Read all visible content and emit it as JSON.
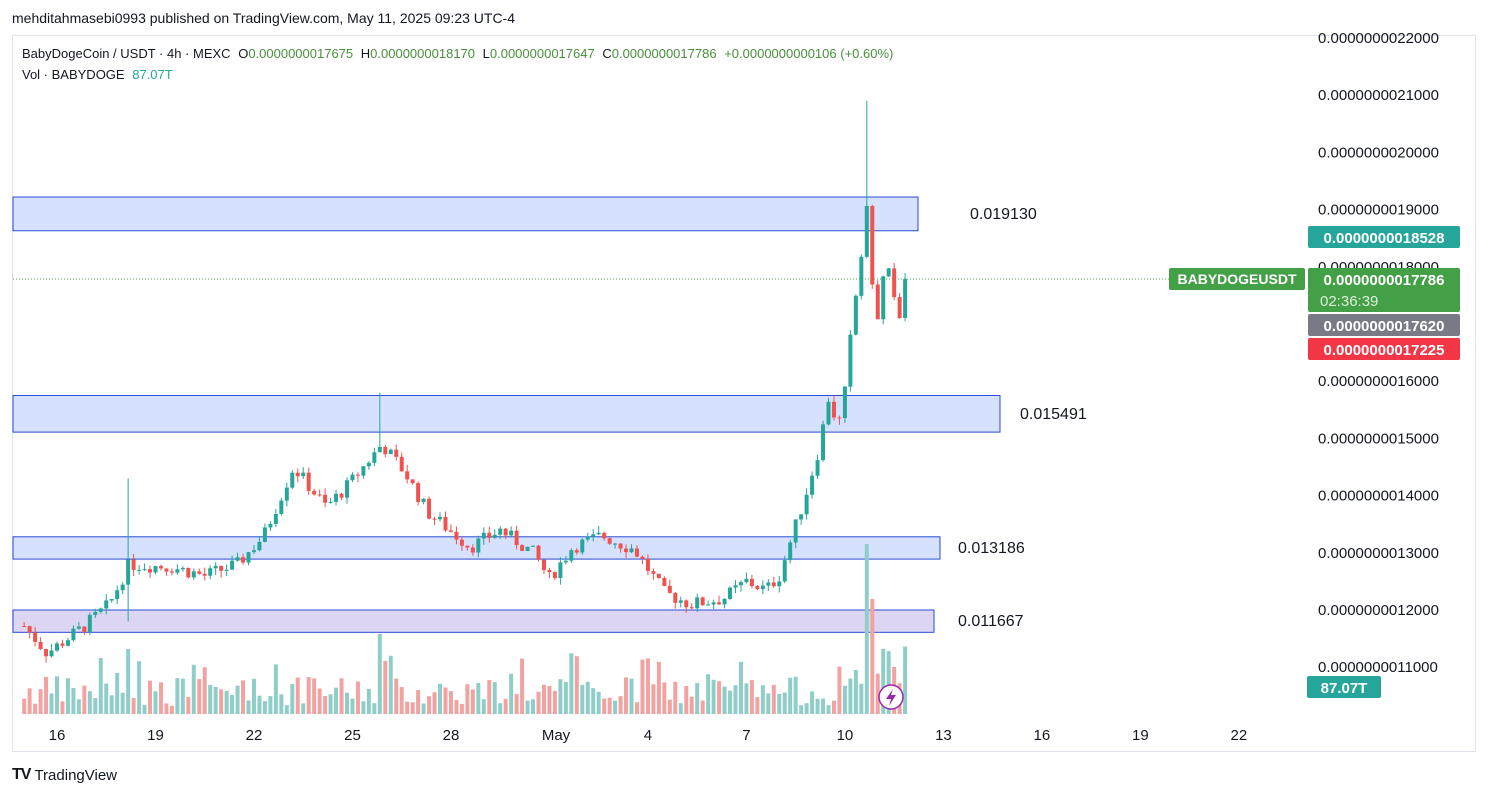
{
  "publisher_line": "mehditahmasebi0993 published on TradingView.com, May 11, 2025 09:23 UTC-4",
  "legend": {
    "symbol": "BabyDogeCoin / USDT · 4h · MEXC",
    "o_label": "O",
    "o_value": "0.0000000017675",
    "h_label": "H",
    "h_value": "0.0000000018170",
    "l_label": "L",
    "l_value": "0.0000000017647",
    "c_label": "C",
    "c_value": "0.0000000017786",
    "change": "+0.0000000000106 (+0.60%)",
    "vol_label": "Vol · BABYDOGE",
    "vol_value": "87.07T"
  },
  "footer": {
    "brand": "TradingView",
    "logo_text": "TV"
  },
  "colors": {
    "up": "#26a69a",
    "down": "#ef5350",
    "volume_up": "#8fcec8",
    "volume_down": "#f1a3a1",
    "zone_fill": "#d6e1fd",
    "zone_stroke": "#2a4bd7",
    "zone_purple_fill": "#ddd6f3",
    "last_price": "#43a047",
    "teal_label": "#26a69a",
    "red_label": "#f23645",
    "gray_label": "#787b86"
  },
  "chart_data": {
    "type": "candlestick",
    "y_ticks": [
      "0.0000000022000",
      "0.0000000021000",
      "0.0000000020000",
      "0.0000000019000",
      "0.0000000018000",
      "0.0000000016000",
      "0.0000000015000",
      "0.0000000014000",
      "0.0000000013000",
      "0.0000000012000",
      "0.0000000011000"
    ],
    "x_ticks": [
      "16",
      "19",
      "22",
      "25",
      "28",
      "May",
      "4",
      "7",
      "10",
      "13",
      "16",
      "19",
      "22"
    ],
    "ylim": [
      1.1e-09,
      2.2e-09
    ],
    "zones": [
      {
        "label": "0.019130",
        "low": 1.863e-09,
        "high": 1.922e-09
      },
      {
        "label": "0.015491",
        "low": 1.511e-09,
        "high": 1.575e-09
      },
      {
        "label": "0.013186",
        "low": 1.289e-09,
        "high": 1.328e-09
      },
      {
        "label": "0.011667",
        "low": 1.161e-09,
        "high": 1.2e-09,
        "purple": true
      }
    ],
    "price_labels": [
      {
        "text": "0.0000000018528",
        "value": 1.8528e-09,
        "kind": "teal"
      },
      {
        "text": "0.0000000017786",
        "value": 1.7786e-09,
        "kind": "last",
        "symbol": "BABYDOGEUSDT",
        "countdown": "02:36:39"
      },
      {
        "text": "0.0000000017620",
        "value": 1.762e-09,
        "kind": "gray"
      },
      {
        "text": "0.0000000017225",
        "value": 1.7225e-09,
        "kind": "red"
      }
    ],
    "volume_label": "87.07T",
    "key_closes": [
      {
        "day": 15.0,
        "c": 1.172e-09
      },
      {
        "day": 15.7,
        "c": 1.125e-09
      },
      {
        "day": 16.8,
        "c": 1.17e-09
      },
      {
        "day": 17.6,
        "c": 1.21e-09
      },
      {
        "day": 18.2,
        "c": 1.28e-09
      },
      {
        "day": 19.5,
        "c": 1.275e-09
      },
      {
        "day": 20.5,
        "c": 1.26e-09
      },
      {
        "day": 21.5,
        "c": 1.28e-09
      },
      {
        "day": 22.3,
        "c": 1.33e-09
      },
      {
        "day": 23.2,
        "c": 1.45e-09
      },
      {
        "day": 24.2,
        "c": 1.38e-09
      },
      {
        "day": 24.9,
        "c": 1.42e-09
      },
      {
        "day": 25.9,
        "c": 1.49e-09
      },
      {
        "day": 26.6,
        "c": 1.44e-09
      },
      {
        "day": 27.3,
        "c": 1.37e-09
      },
      {
        "day": 28.6,
        "c": 1.31e-09
      },
      {
        "day": 29.5,
        "c": 1.34e-09
      },
      {
        "day": 30.5,
        "c": 1.3e-09
      },
      {
        "day": 31.0,
        "c": 1.255e-09
      },
      {
        "day": 31.7,
        "c": 1.31e-09
      },
      {
        "day": 32.6,
        "c": 1.33e-09
      },
      {
        "day": 33.6,
        "c": 1.305e-09
      },
      {
        "day": 34.5,
        "c": 1.23e-09
      },
      {
        "day": 35.3,
        "c": 1.21e-09
      },
      {
        "day": 36.3,
        "c": 1.22e-09
      },
      {
        "day": 37.0,
        "c": 1.25e-09
      },
      {
        "day": 37.6,
        "c": 1.235e-09
      },
      {
        "day": 38.0,
        "c": 1.26e-09
      },
      {
        "day": 38.4,
        "c": 1.33e-09
      },
      {
        "day": 38.8,
        "c": 1.4e-09
      },
      {
        "day": 39.2,
        "c": 1.48e-09
      },
      {
        "day": 39.5,
        "c": 1.57e-09
      },
      {
        "day": 39.8,
        "c": 1.52e-09
      },
      {
        "day": 40.0,
        "c": 1.58e-09
      },
      {
        "day": 40.2,
        "c": 1.69e-09
      },
      {
        "day": 40.45,
        "c": 1.8e-09
      },
      {
        "day": 40.67,
        "c": 1.91e-09
      },
      {
        "day": 40.83,
        "c": 1.77e-09
      },
      {
        "day": 41.0,
        "c": 1.7e-09
      },
      {
        "day": 41.17,
        "c": 1.78e-09
      },
      {
        "day": 41.33,
        "c": 1.8e-09
      },
      {
        "day": 41.5,
        "c": 1.75e-09
      },
      {
        "day": 41.67,
        "c": 1.7e-09
      },
      {
        "day": 41.83,
        "c": 1.7786e-09
      }
    ]
  }
}
